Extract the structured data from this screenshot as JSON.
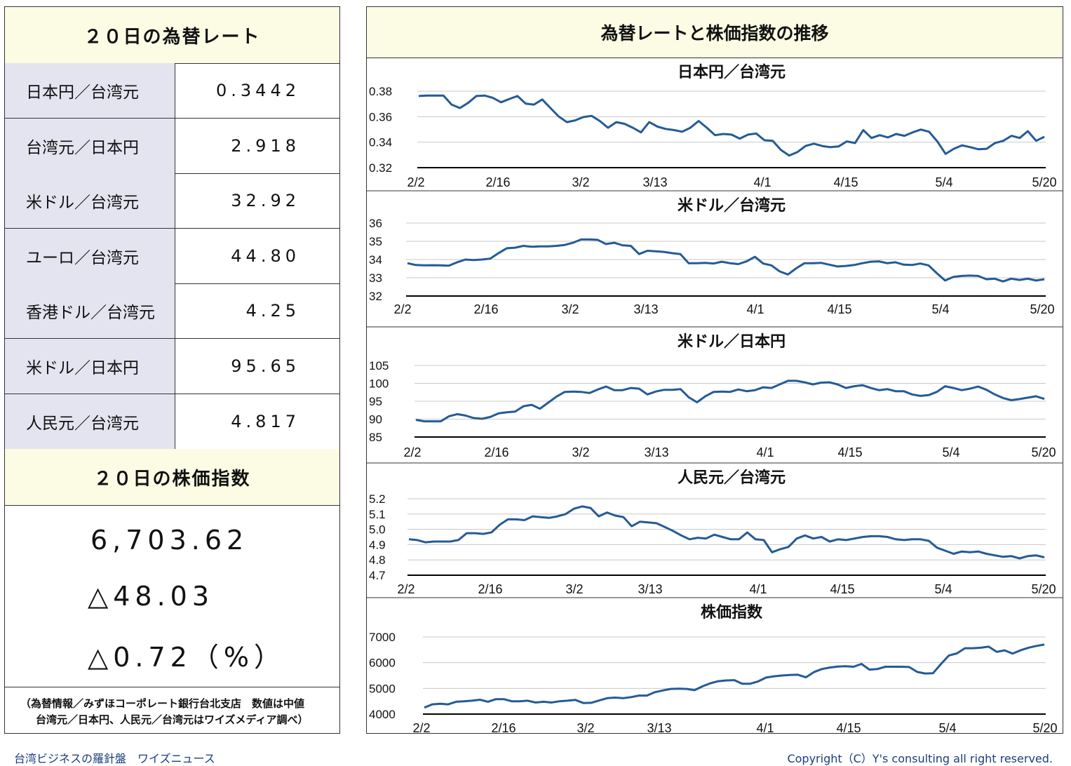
{
  "rates_title": "２０日の為替レート",
  "rates": [
    {
      "label": "日本円／台湾元",
      "value": "0.3442"
    },
    {
      "label": "台湾元／日本円",
      "value": "2.918"
    },
    {
      "label": "米ドル／台湾元",
      "value": "32.92"
    },
    {
      "label": "ユーロ／台湾元",
      "value": "44.80"
    },
    {
      "label": "香港ドル／台湾元",
      "value": "4.25"
    },
    {
      "label": "米ドル／日本円",
      "value": "95.65"
    },
    {
      "label": "人民元／台湾元",
      "value": "4.817"
    }
  ],
  "stock_title": "２０日の株価指数",
  "stock": {
    "index": "6,703.62",
    "change": "△48.03",
    "change_pct": "△0.72（%）"
  },
  "source_line1": "（為替情報／みずほコーポレート銀行台北支店　数値は中値",
  "source_line2": "台湾元／日本円、人民元／台湾元はワイズメディア調べ）",
  "footer_left": "台湾ビジネスの羅針盤　ワイズニュース",
  "footer_right": "Copyright（C）Y's consulting all right reserved.",
  "charts_title": "為替レートと株価指数の推移",
  "chart_data": [
    {
      "type": "line",
      "title": "日本円／台湾元",
      "x_ticks": [
        "2/2",
        "2/16",
        "3/2",
        "3/13",
        "4/1",
        "4/15",
        "5/4",
        "5/20"
      ],
      "y_ticks": [
        "0.32",
        "0.34",
        "0.36",
        "0.38"
      ],
      "ylim": [
        0.32,
        0.38
      ],
      "grid": true,
      "values": [
        0.3762,
        0.3766,
        0.3766,
        0.3766,
        0.3695,
        0.3668,
        0.3708,
        0.3762,
        0.3766,
        0.3748,
        0.3713,
        0.3739,
        0.3762,
        0.3702,
        0.3695,
        0.3735,
        0.3668,
        0.3602,
        0.3557,
        0.3571,
        0.3597,
        0.3606,
        0.3566,
        0.3513,
        0.3557,
        0.3544,
        0.3513,
        0.3477,
        0.3557,
        0.3522,
        0.3504,
        0.3495,
        0.3482,
        0.3513,
        0.3566,
        0.3513,
        0.3455,
        0.3464,
        0.3459,
        0.3428,
        0.3459,
        0.3468,
        0.3415,
        0.3411,
        0.3339,
        0.3295,
        0.3322,
        0.337,
        0.3388,
        0.337,
        0.3361,
        0.3366,
        0.3406,
        0.3393,
        0.3495,
        0.3433,
        0.3455,
        0.3437,
        0.3464,
        0.345,
        0.3477,
        0.3499,
        0.3482,
        0.3406,
        0.3308,
        0.3348,
        0.3375,
        0.3361,
        0.3344,
        0.3348,
        0.3393,
        0.341,
        0.345,
        0.3433,
        0.3486,
        0.3411,
        0.3442
      ]
    },
    {
      "type": "line",
      "title": "米ドル／台湾元",
      "x_ticks": [
        "2/2",
        "2/16",
        "3/2",
        "3/13",
        "4/1",
        "4/15",
        "5/4",
        "5/20"
      ],
      "y_ticks": [
        "32",
        "33",
        "34",
        "35",
        "36"
      ],
      "ylim": [
        32,
        36
      ],
      "grid": true,
      "values": [
        33.8,
        33.7,
        33.68,
        33.69,
        33.68,
        33.66,
        33.85,
        34.0,
        33.97,
        34.0,
        34.05,
        34.35,
        34.62,
        34.65,
        34.75,
        34.7,
        34.72,
        34.72,
        34.75,
        34.8,
        34.92,
        35.1,
        35.1,
        35.08,
        34.85,
        34.92,
        34.78,
        34.75,
        34.3,
        34.48,
        34.45,
        34.42,
        34.35,
        34.3,
        33.8,
        33.8,
        33.82,
        33.78,
        33.88,
        33.8,
        33.75,
        33.9,
        34.15,
        33.78,
        33.68,
        33.35,
        33.18,
        33.52,
        33.8,
        33.8,
        33.82,
        33.72,
        33.62,
        33.65,
        33.7,
        33.8,
        33.88,
        33.9,
        33.8,
        33.85,
        33.72,
        33.7,
        33.78,
        33.68,
        33.25,
        32.85,
        33.05,
        33.1,
        33.12,
        33.1,
        32.92,
        32.95,
        32.8,
        32.95,
        32.88,
        32.95,
        32.85,
        32.92
      ]
    },
    {
      "type": "line",
      "title": "米ドル／日本円",
      "x_ticks": [
        "2/2",
        "2/16",
        "3/2",
        "3/13",
        "4/1",
        "4/15",
        "5/4",
        "5/20"
      ],
      "y_ticks": [
        "85",
        "90",
        "95",
        "100",
        "105"
      ],
      "ylim": [
        85,
        105
      ],
      "grid": true,
      "values": [
        89.8,
        89.4,
        89.4,
        89.4,
        90.8,
        91.4,
        91.0,
        90.3,
        90.1,
        90.6,
        91.6,
        91.9,
        92.1,
        93.6,
        94.0,
        92.9,
        94.6,
        96.3,
        97.6,
        97.7,
        97.6,
        97.3,
        98.3,
        99.1,
        98.1,
        98.1,
        98.7,
        98.5,
        96.9,
        97.7,
        98.2,
        98.2,
        98.4,
        96.1,
        94.7,
        96.4,
        97.6,
        97.7,
        97.6,
        98.3,
        97.8,
        98.1,
        98.9,
        98.7,
        99.7,
        100.7,
        100.7,
        100.3,
        99.7,
        100.2,
        100.3,
        99.7,
        98.7,
        99.2,
        99.5,
        98.7,
        98.1,
        98.4,
        97.8,
        97.8,
        96.9,
        96.5,
        96.7,
        97.6,
        99.2,
        98.7,
        98.1,
        98.5,
        99.1,
        98.2,
        96.9,
        95.9,
        95.3,
        95.6,
        96.0,
        96.4,
        95.65
      ]
    },
    {
      "type": "line",
      "title": "人民元／台湾元",
      "x_ticks": [
        "2/2",
        "2/16",
        "3/2",
        "3/13",
        "4/1",
        "4/15",
        "5/4",
        "5/20"
      ],
      "y_ticks": [
        "4.7",
        "4.8",
        "4.9",
        "5.0",
        "5.1",
        "5.2"
      ],
      "ylim": [
        4.7,
        5.2
      ],
      "grid": true,
      "values": [
        4.935,
        4.93,
        4.915,
        4.92,
        4.92,
        4.92,
        4.93,
        4.975,
        4.975,
        4.97,
        4.98,
        5.03,
        5.065,
        5.065,
        5.06,
        5.085,
        5.08,
        5.075,
        5.085,
        5.1,
        5.135,
        5.15,
        5.14,
        5.085,
        5.11,
        5.09,
        5.08,
        5.02,
        5.05,
        5.045,
        5.04,
        5.015,
        4.99,
        4.96,
        4.935,
        4.945,
        4.94,
        4.965,
        4.95,
        4.935,
        4.935,
        4.98,
        4.935,
        4.93,
        4.85,
        4.87,
        4.885,
        4.94,
        4.96,
        4.94,
        4.95,
        4.92,
        4.935,
        4.93,
        4.94,
        4.95,
        4.955,
        4.955,
        4.95,
        4.935,
        4.93,
        4.935,
        4.935,
        4.925,
        4.88,
        4.86,
        4.84,
        4.855,
        4.85,
        4.855,
        4.84,
        4.83,
        4.82,
        4.825,
        4.81,
        4.825,
        4.83,
        4.817
      ]
    },
    {
      "type": "line",
      "title": "株価指数",
      "x_ticks": [
        "2/2",
        "2/16",
        "3/2",
        "3/13",
        "4/1",
        "4/15",
        "5/4",
        "5/20"
      ],
      "y_ticks": [
        "4000",
        "5000",
        "6000",
        "7000"
      ],
      "ylim": [
        4000,
        7000
      ],
      "grid": true,
      "values": [
        4250,
        4380,
        4400,
        4380,
        4480,
        4500,
        4520,
        4560,
        4480,
        4580,
        4580,
        4500,
        4500,
        4520,
        4450,
        4480,
        4450,
        4500,
        4520,
        4550,
        4430,
        4440,
        4530,
        4620,
        4640,
        4620,
        4660,
        4720,
        4720,
        4850,
        4920,
        4980,
        4990,
        4980,
        4930,
        5080,
        5200,
        5280,
        5310,
        5320,
        5180,
        5180,
        5270,
        5420,
        5470,
        5500,
        5520,
        5530,
        5430,
        5630,
        5750,
        5810,
        5850,
        5860,
        5840,
        5950,
        5730,
        5750,
        5840,
        5840,
        5840,
        5830,
        5640,
        5580,
        5590,
        5950,
        6280,
        6360,
        6560,
        6560,
        6580,
        6620,
        6420,
        6480,
        6350,
        6480,
        6580,
        6650,
        6703
      ]
    }
  ]
}
